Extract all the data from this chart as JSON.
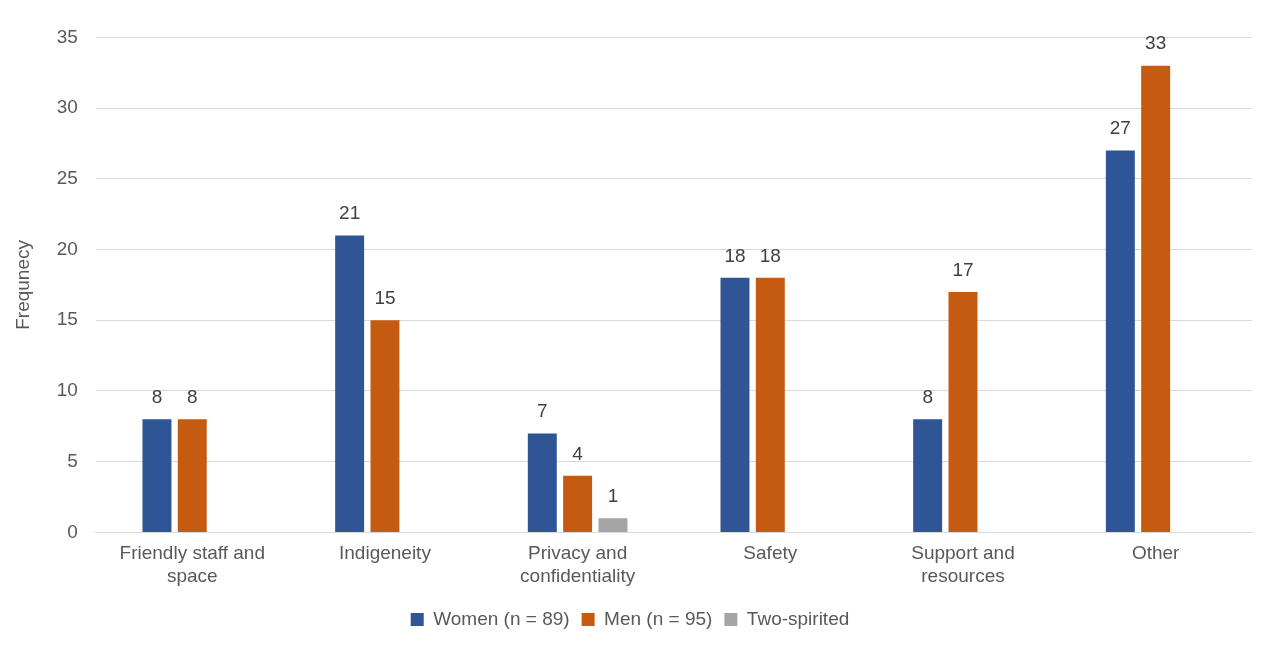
{
  "chart_data": {
    "type": "bar",
    "ylabel": "Frequnecy",
    "categories": [
      "Friendly staff and space",
      "Indigeneity",
      "Privacy and confidentiality",
      "Safety",
      "Support and resources",
      "Other"
    ],
    "series": [
      {
        "name": "Women (n = 89)",
        "color": "#2f5597",
        "values": [
          8,
          21,
          7,
          18,
          8,
          27
        ]
      },
      {
        "name": "Men (n = 95)",
        "color": "#c55a11",
        "values": [
          8,
          15,
          4,
          18,
          17,
          33
        ]
      },
      {
        "name": "Two-spirited",
        "color": "#a5a5a5",
        "values": [
          null,
          null,
          1,
          null,
          null,
          null
        ]
      }
    ],
    "ylim": [
      0,
      35
    ],
    "yticks": [
      0,
      5,
      10,
      15,
      20,
      25,
      30,
      35
    ],
    "grid": "y",
    "legend": "bottom",
    "data_labels": true
  }
}
